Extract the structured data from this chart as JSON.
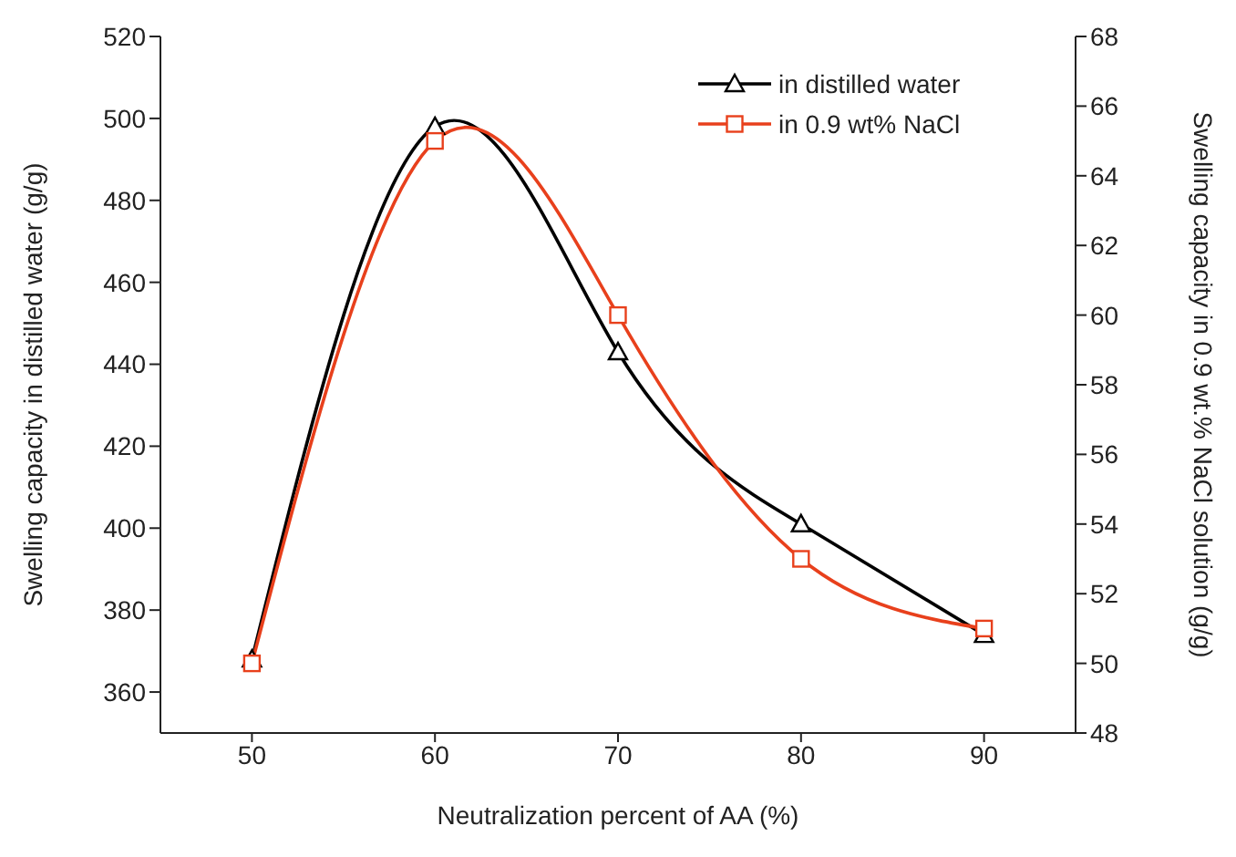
{
  "chart_data": {
    "type": "line",
    "xlabel": "Neutralization percent of AA (%)",
    "ylabel": "Swelling capacity in distilled water (g/g)",
    "y2label": "Swelling capacity in 0.9 wt.% NaCl solution (g/g)",
    "x": [
      50,
      60,
      70,
      80,
      90
    ],
    "xlim": [
      45,
      95
    ],
    "xticks": [
      50,
      60,
      70,
      80,
      90
    ],
    "ylim": [
      350,
      520
    ],
    "yticks": [
      360,
      380,
      400,
      420,
      440,
      460,
      480,
      500,
      520
    ],
    "y2lim": [
      48,
      68
    ],
    "y2ticks": [
      48,
      50,
      52,
      54,
      56,
      58,
      60,
      62,
      64,
      66,
      68
    ],
    "series": [
      {
        "name": "in distilled water",
        "color": "#000000",
        "marker": "triangle",
        "values": [
          368,
          498,
          443,
          401,
          374
        ]
      },
      {
        "name": "in 0.9 wt% NaCl",
        "color": "#e8401c",
        "marker": "square",
        "axis": "y2",
        "values": [
          50,
          65,
          60,
          53,
          51
        ]
      }
    ],
    "legend": "top right"
  }
}
